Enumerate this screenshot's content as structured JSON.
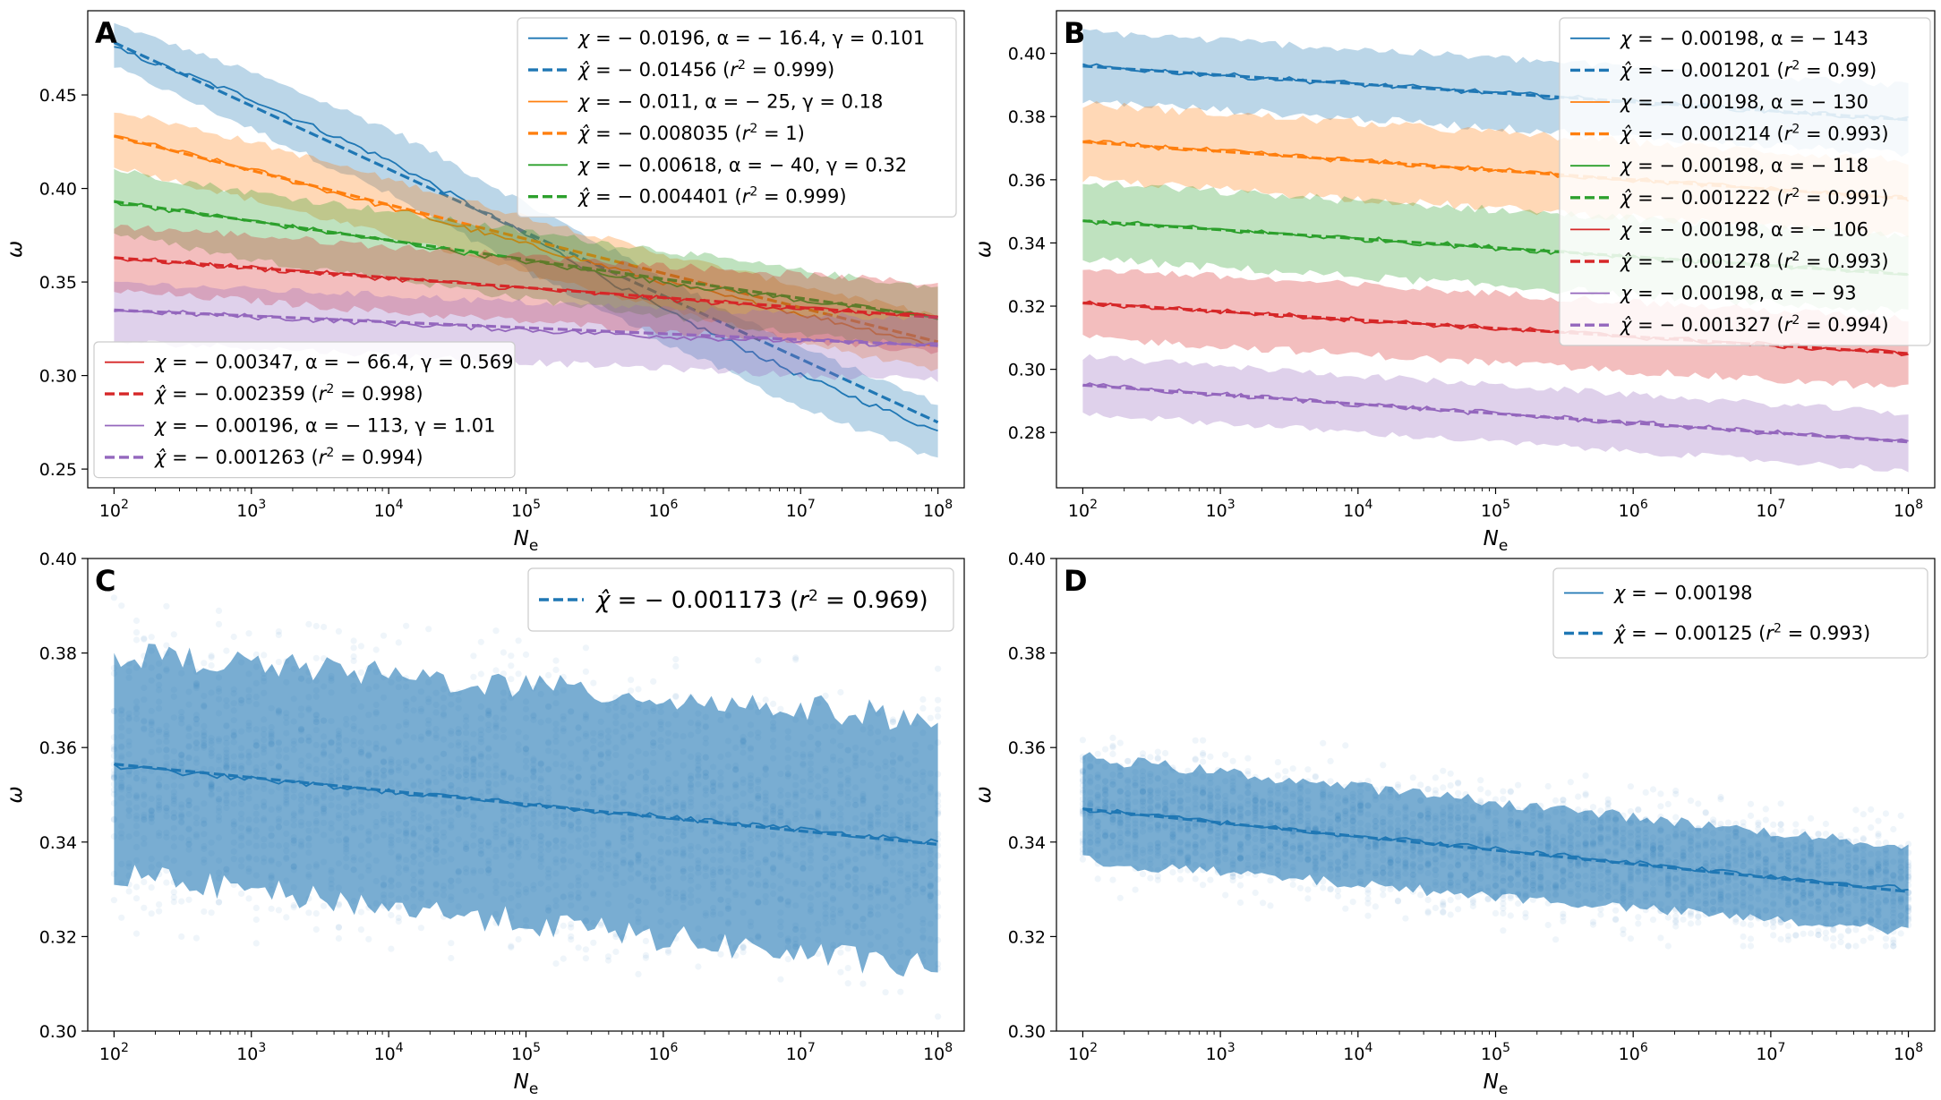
{
  "figure": {
    "layout": "2x2 panels"
  },
  "chart_data": [
    {
      "panel": "A",
      "type": "line",
      "xscale": "log",
      "xlabel": "N_e",
      "ylabel": "ω",
      "xlim": [
        100.0,
        100000000.0
      ],
      "ylim": [
        0.24,
        0.495
      ],
      "x_ticks": [
        100.0,
        1000.0,
        10000.0,
        100000.0,
        1000000.0,
        10000000.0,
        100000000.0
      ],
      "x_tick_labels": [
        "10^2",
        "10^3",
        "10^4",
        "10^5",
        "10^6",
        "10^7",
        "10^8"
      ],
      "y_ticks": [
        0.25,
        0.3,
        0.35,
        0.4,
        0.45
      ],
      "y_tick_labels": [
        "0.25",
        "0.30",
        "0.35",
        "0.40",
        "0.45"
      ],
      "series": [
        {
          "color": "#1f77b4",
          "curve": [
            [
              100.0,
              0.475
            ],
            [
              1000.0,
              0.448
            ],
            [
              10000.0,
              0.415
            ],
            [
              100000.0,
              0.375
            ],
            [
              1000000.0,
              0.335
            ],
            [
              10000000.0,
              0.3
            ],
            [
              100000000.0,
              0.27
            ]
          ],
          "fit": [
            [
              100.0,
              0.478
            ],
            [
              100000000.0,
              0.275
            ]
          ],
          "band": [
            [
              0.488,
              0.465
            ],
            [
              0.462,
              0.432
            ],
            [
              0.432,
              0.397
            ],
            [
              0.392,
              0.356
            ],
            [
              0.352,
              0.318
            ],
            [
              0.315,
              0.283
            ],
            [
              0.285,
              0.255
            ]
          ]
        },
        {
          "color": "#ff7f0e",
          "curve": [
            [
              100.0,
              0.428
            ],
            [
              1000.0,
              0.41
            ],
            [
              10000.0,
              0.39
            ],
            [
              100000.0,
              0.37
            ],
            [
              1000000.0,
              0.35
            ],
            [
              10000000.0,
              0.333
            ],
            [
              100000000.0,
              0.316
            ]
          ],
          "fit": [
            [
              100.0,
              0.428
            ],
            [
              100000000.0,
              0.318
            ]
          ],
          "band": [
            [
              0.442,
              0.412
            ],
            [
              0.425,
              0.394
            ],
            [
              0.405,
              0.375
            ],
            [
              0.385,
              0.355
            ],
            [
              0.365,
              0.336
            ],
            [
              0.348,
              0.318
            ],
            [
              0.332,
              0.302
            ]
          ]
        },
        {
          "color": "#2ca02c",
          "curve": [
            [
              100.0,
              0.393
            ],
            [
              10000.0,
              0.372
            ],
            [
              1000000.0,
              0.35
            ],
            [
              100000000.0,
              0.331
            ]
          ],
          "fit": [
            [
              100.0,
              0.393
            ],
            [
              100000000.0,
              0.331
            ]
          ],
          "band": [
            [
              0.41,
              0.376
            ],
            [
              0.398,
              0.362
            ],
            [
              0.388,
              0.352
            ],
            [
              0.377,
              0.341
            ],
            [
              0.367,
              0.332
            ],
            [
              0.356,
              0.322
            ],
            [
              0.347,
              0.315
            ]
          ]
        },
        {
          "color": "#d62728",
          "curve": [
            [
              100.0,
              0.363
            ],
            [
              10000.0,
              0.352
            ],
            [
              1000000.0,
              0.341
            ],
            [
              100000000.0,
              0.331
            ]
          ],
          "fit": [
            [
              100.0,
              0.363
            ],
            [
              100000000.0,
              0.331
            ]
          ],
          "band": [
            [
              0.38,
              0.345
            ],
            [
              0.375,
              0.34
            ],
            [
              0.369,
              0.334
            ],
            [
              0.364,
              0.329
            ],
            [
              0.359,
              0.324
            ],
            [
              0.354,
              0.318
            ],
            [
              0.349,
              0.313
            ]
          ]
        },
        {
          "color": "#9467bd",
          "curve": [
            [
              100.0,
              0.335
            ],
            [
              10000.0,
              0.328
            ],
            [
              1000000.0,
              0.321
            ],
            [
              100000000.0,
              0.316
            ]
          ],
          "fit": [
            [
              100.0,
              0.335
            ],
            [
              100000000.0,
              0.316
            ]
          ],
          "band": [
            [
              0.35,
              0.318
            ],
            [
              0.346,
              0.315
            ],
            [
              0.343,
              0.311
            ],
            [
              0.339,
              0.307
            ],
            [
              0.336,
              0.304
            ],
            [
              0.333,
              0.3
            ],
            [
              0.33,
              0.298
            ]
          ]
        }
      ],
      "legends": [
        {
          "position": "upper-right",
          "entries": [
            {
              "color": "#1f77b4",
              "dashed": false,
              "symbol": "χ",
              "text": "= − 0.0196,  α = − 16.4,  γ = 0.101"
            },
            {
              "color": "#1f77b4",
              "dashed": true,
              "symbol": "χ̂",
              "text": "= − 0.01456 (",
              "r2": "= 0.999)"
            },
            {
              "color": "#ff7f0e",
              "dashed": false,
              "symbol": "χ",
              "text": "= − 0.011,  α = − 25,  γ = 0.18"
            },
            {
              "color": "#ff7f0e",
              "dashed": true,
              "symbol": "χ̂",
              "text": "= − 0.008035 (",
              "r2": "= 1)"
            },
            {
              "color": "#2ca02c",
              "dashed": false,
              "symbol": "χ",
              "text": "= − 0.00618,  α = − 40,  γ = 0.32"
            },
            {
              "color": "#2ca02c",
              "dashed": true,
              "symbol": "χ̂",
              "text": "= − 0.004401 (",
              "r2": "= 0.999)"
            }
          ]
        },
        {
          "position": "lower-left",
          "entries": [
            {
              "color": "#d62728",
              "dashed": false,
              "symbol": "χ",
              "text": "= − 0.00347,  α = − 66.4,  γ = 0.569"
            },
            {
              "color": "#d62728",
              "dashed": true,
              "symbol": "χ̂",
              "text": "= − 0.002359 (",
              "r2": "= 0.998)"
            },
            {
              "color": "#9467bd",
              "dashed": false,
              "symbol": "χ",
              "text": "= − 0.00196,  α = − 113,  γ = 1.01"
            },
            {
              "color": "#9467bd",
              "dashed": true,
              "symbol": "χ̂",
              "text": "= − 0.001263 (",
              "r2": "= 0.994)"
            }
          ]
        }
      ]
    },
    {
      "panel": "B",
      "type": "line",
      "xscale": "log",
      "xlabel": "N_e",
      "ylabel": "ω",
      "xlim": [
        100.0,
        100000000.0
      ],
      "ylim": [
        0.2625,
        0.4135
      ],
      "x_ticks": [
        100.0,
        1000.0,
        10000.0,
        100000.0,
        1000000.0,
        10000000.0,
        100000000.0
      ],
      "x_tick_labels": [
        "10^2",
        "10^3",
        "10^4",
        "10^5",
        "10^6",
        "10^7",
        "10^8"
      ],
      "y_ticks": [
        0.28,
        0.3,
        0.32,
        0.34,
        0.36,
        0.38,
        0.4
      ],
      "y_tick_labels": [
        "0.28",
        "0.30",
        "0.32",
        "0.34",
        "0.36",
        "0.38",
        "0.40"
      ],
      "series": [
        {
          "color": "#1f77b4",
          "curve": [
            [
              100.0,
              0.396
            ],
            [
              100000000.0,
              0.379
            ]
          ],
          "fit": [
            [
              100.0,
              0.396
            ],
            [
              100000000.0,
              0.379
            ]
          ],
          "half_width": 0.011
        },
        {
          "color": "#ff7f0e",
          "curve": [
            [
              100.0,
              0.372
            ],
            [
              100000000.0,
              0.354
            ]
          ],
          "fit": [
            [
              100.0,
              0.372
            ],
            [
              100000000.0,
              0.354
            ]
          ],
          "half_width": 0.012
        },
        {
          "color": "#2ca02c",
          "curve": [
            [
              100.0,
              0.347
            ],
            [
              100000000.0,
              0.33
            ]
          ],
          "fit": [
            [
              100.0,
              0.347
            ],
            [
              100000000.0,
              0.33
            ]
          ],
          "half_width": 0.012
        },
        {
          "color": "#d62728",
          "curve": [
            [
              100.0,
              0.321
            ],
            [
              100000000.0,
              0.305
            ]
          ],
          "fit": [
            [
              100.0,
              0.321
            ],
            [
              100000000.0,
              0.305
            ]
          ],
          "half_width": 0.011
        },
        {
          "color": "#9467bd",
          "curve": [
            [
              100.0,
              0.295
            ],
            [
              100000000.0,
              0.277
            ]
          ],
          "fit": [
            [
              100.0,
              0.295
            ],
            [
              100000000.0,
              0.277
            ]
          ],
          "half_width": 0.009
        }
      ],
      "legends": [
        {
          "position": "upper-right",
          "entries": [
            {
              "color": "#1f77b4",
              "dashed": false,
              "symbol": "χ",
              "text": "= − 0.00198,  α = − 143"
            },
            {
              "color": "#1f77b4",
              "dashed": true,
              "symbol": "χ̂",
              "text": "= − 0.001201 (",
              "r2": "= 0.99)"
            },
            {
              "color": "#ff7f0e",
              "dashed": false,
              "symbol": "χ",
              "text": "= − 0.00198,  α = − 130"
            },
            {
              "color": "#ff7f0e",
              "dashed": true,
              "symbol": "χ̂",
              "text": "= − 0.001214 (",
              "r2": "= 0.993)"
            },
            {
              "color": "#2ca02c",
              "dashed": false,
              "symbol": "χ",
              "text": "= − 0.00198,  α = − 118"
            },
            {
              "color": "#2ca02c",
              "dashed": true,
              "symbol": "χ̂",
              "text": "= − 0.001222 (",
              "r2": "= 0.991)"
            },
            {
              "color": "#d62728",
              "dashed": false,
              "symbol": "χ",
              "text": "= − 0.00198,  α = − 106"
            },
            {
              "color": "#d62728",
              "dashed": true,
              "symbol": "χ̂",
              "text": "= − 0.001278 (",
              "r2": "= 0.993)"
            },
            {
              "color": "#9467bd",
              "dashed": false,
              "symbol": "χ",
              "text": "= − 0.00198,  α = − 93"
            },
            {
              "color": "#9467bd",
              "dashed": true,
              "symbol": "χ̂",
              "text": "= − 0.001327 (",
              "r2": "= 0.994)"
            }
          ]
        }
      ]
    },
    {
      "panel": "C",
      "type": "scatter",
      "xscale": "log",
      "xlabel": "N_e",
      "ylabel": "ω",
      "xlim": [
        100.0,
        100000000.0
      ],
      "ylim": [
        0.3,
        0.4
      ],
      "x_ticks": [
        100.0,
        1000.0,
        10000.0,
        100000.0,
        1000000.0,
        10000000.0,
        100000000.0
      ],
      "x_tick_labels": [
        "10^2",
        "10^3",
        "10^4",
        "10^5",
        "10^6",
        "10^7",
        "10^8"
      ],
      "y_ticks": [
        0.3,
        0.32,
        0.34,
        0.36,
        0.38,
        0.4
      ],
      "y_tick_labels": [
        "0.30",
        "0.32",
        "0.34",
        "0.36",
        "0.38",
        "0.40"
      ],
      "series": [
        {
          "color": "#1f77b4",
          "curve": [
            [
              100.0,
              0.356
            ],
            [
              100000000.0,
              0.34
            ]
          ],
          "fit": [
            [
              100.0,
              0.3565
            ],
            [
              100000000.0,
              0.3395
            ]
          ],
          "band_upper": [
            [
              100.0,
              0.38
            ],
            [
              100000000.0,
              0.366
            ]
          ],
          "band_lower": [
            [
              100.0,
              0.333
            ],
            [
              100000000.0,
              0.313
            ]
          ],
          "scatter_spread": [
            0.3,
            0.398
          ]
        }
      ],
      "legends": [
        {
          "position": "upper-right",
          "entries": [
            {
              "color": "#1f77b4",
              "dashed": true,
              "symbol": "χ̂",
              "text": "= − 0.001173 (",
              "r2": "= 0.969)"
            }
          ]
        }
      ]
    },
    {
      "panel": "D",
      "type": "scatter",
      "xscale": "log",
      "xlabel": "N_e",
      "ylabel": "ω",
      "xlim": [
        100.0,
        100000000.0
      ],
      "ylim": [
        0.3,
        0.4
      ],
      "x_ticks": [
        100.0,
        1000.0,
        10000.0,
        100000.0,
        1000000.0,
        10000000.0,
        100000000.0
      ],
      "x_tick_labels": [
        "10^2",
        "10^3",
        "10^4",
        "10^5",
        "10^6",
        "10^7",
        "10^8"
      ],
      "y_ticks": [
        0.3,
        0.32,
        0.34,
        0.36,
        0.38,
        0.4
      ],
      "y_tick_labels": [
        "0.30",
        "0.32",
        "0.34",
        "0.36",
        "0.38",
        "0.40"
      ],
      "series": [
        {
          "color": "#1f77b4",
          "curve": [
            [
              100.0,
              0.347
            ],
            [
              100000000.0,
              0.33
            ]
          ],
          "fit": [
            [
              100.0,
              0.347
            ],
            [
              100000000.0,
              0.3295
            ]
          ],
          "band_upper": [
            [
              100.0,
              0.358
            ],
            [
              100000000.0,
              0.339
            ]
          ],
          "band_lower": [
            [
              100.0,
              0.336
            ],
            [
              100000000.0,
              0.321
            ]
          ],
          "scatter_spread": [
            0.318,
            0.364
          ]
        }
      ],
      "legends": [
        {
          "position": "upper-right",
          "entries": [
            {
              "color": "#1f77b4",
              "dashed": false,
              "symbol": "χ",
              "text": "= − 0.00198"
            },
            {
              "color": "#1f77b4",
              "dashed": true,
              "symbol": "χ̂",
              "text": "= − 0.00125 (",
              "r2": "= 0.993)"
            }
          ]
        }
      ]
    }
  ]
}
